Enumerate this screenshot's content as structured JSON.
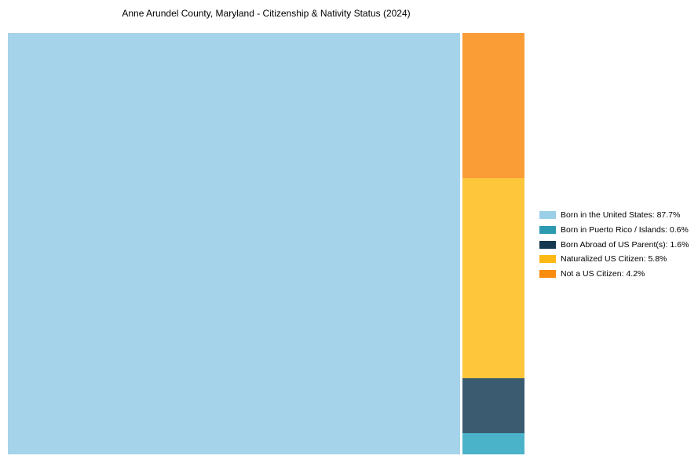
{
  "title": "Anne Arundel County, Maryland - Citizenship & Nativity Status (2024)",
  "chart_data": {
    "type": "treemap",
    "title": "Anne Arundel County, Maryland - Citizenship & Nativity Status (2024)",
    "unit": "%",
    "legend_position": "right",
    "background_color": "#ffffff",
    "categories": [
      {
        "label": "Born in the United States",
        "value": 87.7,
        "display": "Born in the United States: 87.7%",
        "chart_color": "#A5D4EA",
        "legend_color": "#9BCFE8"
      },
      {
        "label": "Born in Puerto Rico / Islands",
        "value": 0.6,
        "display": "Born in Puerto Rico / Islands: 0.6%",
        "chart_color": "#4BB3C9",
        "legend_color": "#2C9AB0"
      },
      {
        "label": "Born Abroad of US Parent(s)",
        "value": 1.6,
        "display": "Born Abroad of US Parent(s): 1.6%",
        "chart_color": "#3A5B70",
        "legend_color": "#143950"
      },
      {
        "label": "Naturalized US Citizen",
        "value": 5.8,
        "display": "Naturalized US Citizen: 5.8%",
        "chart_color": "#FDC63B",
        "legend_color": "#FDB813"
      },
      {
        "label": "Not a US Citizen",
        "value": 4.2,
        "display": "Not a US Citizen: 4.2%",
        "chart_color": "#FA9D36",
        "legend_color": "#F98B0F"
      }
    ]
  }
}
